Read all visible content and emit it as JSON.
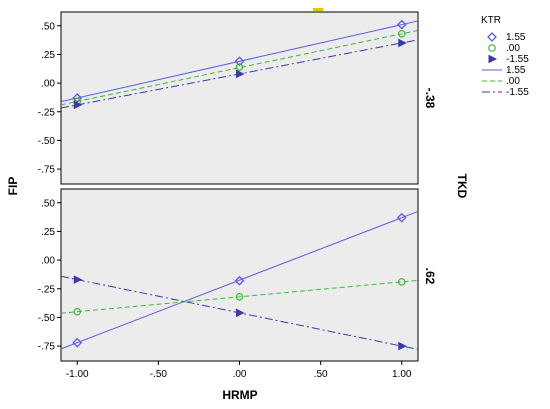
{
  "chart_data": {
    "type": "line",
    "xlabel": "HRMP",
    "ylabel": "FIP",
    "panel_variable": "TKD",
    "legend_title": "KTR",
    "x_ticks": [
      "-1.00",
      "-.50",
      ".00",
      ".50",
      "1.00"
    ],
    "y_ticks": [
      ".50",
      ".25",
      ".00",
      "-.25",
      "-.50",
      "-.75"
    ],
    "xlim": [
      -1.1,
      1.1
    ],
    "ylim": [
      -0.88,
      0.62
    ],
    "grid": false,
    "legend_position": "right",
    "legend_entries": [
      "1.55",
      ".00",
      "-1.55",
      "1.55",
      ".00",
      "-1.55"
    ],
    "series_colors": [
      "#5b5be6",
      "#3cb83c",
      "#3a3aa8"
    ],
    "panels": [
      {
        "label": "-.38",
        "series": [
          {
            "name": "1.55",
            "x": [
              -1,
              0,
              1
            ],
            "y": [
              -0.13,
              0.19,
              0.51
            ],
            "marker": "diamond"
          },
          {
            "name": ".00",
            "x": [
              -1,
              0,
              1
            ],
            "y": [
              -0.16,
              0.14,
              0.43
            ],
            "marker": "circle"
          },
          {
            "name": "-1.55",
            "x": [
              -1,
              0,
              1
            ],
            "y": [
              -0.19,
              0.08,
              0.35
            ],
            "marker": "triangle"
          }
        ],
        "fit_lines": [
          {
            "name": "1.55",
            "slope": 0.32,
            "intercept": 0.19
          },
          {
            "name": ".00",
            "slope": 0.295,
            "intercept": 0.135
          },
          {
            "name": "-1.55",
            "slope": 0.27,
            "intercept": 0.08
          }
        ]
      },
      {
        "label": ".62",
        "series": [
          {
            "name": "1.55",
            "x": [
              -1,
              0,
              1
            ],
            "y": [
              -0.72,
              -0.18,
              0.37
            ],
            "marker": "diamond"
          },
          {
            "name": ".00",
            "x": [
              -1,
              0,
              1
            ],
            "y": [
              -0.45,
              -0.32,
              -0.19
            ],
            "marker": "circle"
          },
          {
            "name": "-1.55",
            "x": [
              -1,
              0,
              1
            ],
            "y": [
              -0.17,
              -0.46,
              -0.75
            ],
            "marker": "triangle"
          }
        ],
        "fit_lines": [
          {
            "name": "1.55",
            "slope": 0.545,
            "intercept": -0.175
          },
          {
            "name": ".00",
            "slope": 0.13,
            "intercept": -0.32
          },
          {
            "name": "-1.55",
            "slope": -0.29,
            "intercept": -0.46
          }
        ]
      }
    ]
  }
}
